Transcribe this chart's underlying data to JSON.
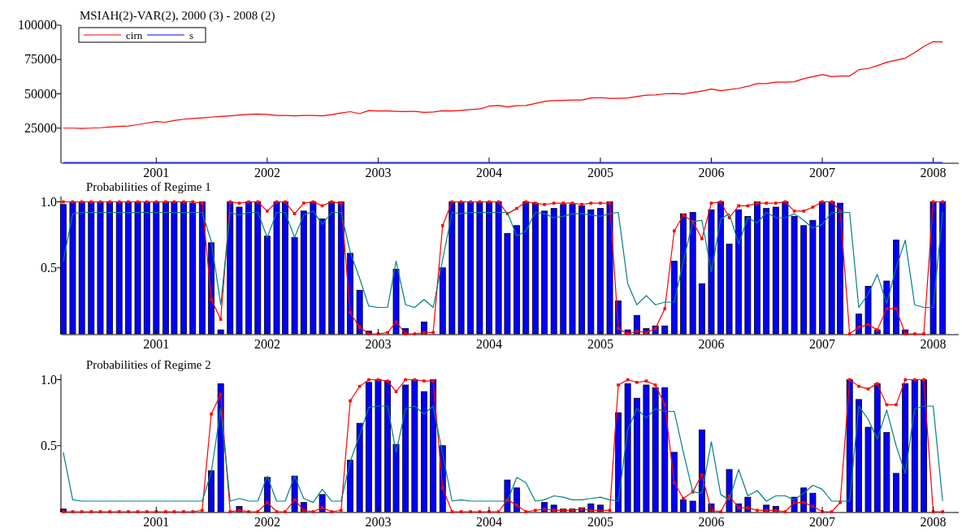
{
  "chart_data": [
    {
      "type": "line",
      "title": "MSIAH(2)-VAR(2), 2000 (3) - 2008 (2)",
      "x": [
        "2000-03",
        "2000-04",
        "2000-05",
        "2000-06",
        "2000-07",
        "2000-08",
        "2000-09",
        "2000-10",
        "2000-11",
        "2000-12",
        "2001-01",
        "2001-02",
        "2001-03",
        "2001-04",
        "2001-05",
        "2001-06",
        "2001-07",
        "2001-08",
        "2001-09",
        "2001-10",
        "2001-11",
        "2001-12",
        "2002-01",
        "2002-02",
        "2002-03",
        "2002-04",
        "2002-05",
        "2002-06",
        "2002-07",
        "2002-08",
        "2002-09",
        "2002-10",
        "2002-11",
        "2002-12",
        "2003-01",
        "2003-02",
        "2003-03",
        "2003-04",
        "2003-05",
        "2003-06",
        "2003-07",
        "2003-08",
        "2003-09",
        "2003-10",
        "2003-11",
        "2003-12",
        "2004-01",
        "2004-02",
        "2004-03",
        "2004-04",
        "2004-05",
        "2004-06",
        "2004-07",
        "2004-08",
        "2004-09",
        "2004-10",
        "2004-11",
        "2004-12",
        "2005-01",
        "2005-02",
        "2005-03",
        "2005-04",
        "2005-05",
        "2005-06",
        "2005-07",
        "2005-08",
        "2005-09",
        "2005-10",
        "2005-11",
        "2005-12",
        "2006-01",
        "2006-02",
        "2006-03",
        "2006-04",
        "2006-05",
        "2006-06",
        "2006-07",
        "2006-08",
        "2006-09",
        "2006-10",
        "2006-11",
        "2006-12",
        "2007-01",
        "2007-02",
        "2007-03",
        "2007-04",
        "2007-05",
        "2007-06",
        "2007-07",
        "2007-08",
        "2007-09",
        "2007-10",
        "2007-11",
        "2007-12",
        "2008-01",
        "2008-02"
      ],
      "series": [
        {
          "name": "cirn",
          "color": "#ff0000",
          "values": [
            25000,
            25000,
            24800,
            25000,
            25300,
            25800,
            26300,
            26500,
            27500,
            28700,
            29800,
            29300,
            30500,
            31500,
            32000,
            32500,
            33000,
            33500,
            34000,
            34500,
            35000,
            35300,
            35000,
            34300,
            34300,
            34000,
            34200,
            34300,
            34000,
            34800,
            36000,
            37000,
            35500,
            37800,
            37500,
            37500,
            37200,
            37000,
            37200,
            36500,
            36800,
            37600,
            37500,
            38000,
            38500,
            39000,
            41000,
            41500,
            40500,
            41300,
            41500,
            43000,
            44500,
            45000,
            45200,
            45500,
            45500,
            47000,
            47200,
            46700,
            46700,
            47000,
            48000,
            49000,
            49200,
            50000,
            50200,
            49800,
            51000,
            52000,
            53500,
            52300,
            53000,
            54000,
            55500,
            57500,
            57500,
            58500,
            58500,
            58800,
            61000,
            62500,
            64000,
            62500,
            63000,
            63000,
            67500,
            68500,
            70500,
            73000,
            74500,
            76000,
            80000,
            84500,
            88000,
            87800
          ]
        },
        {
          "name": "s",
          "color": "#0000ff",
          "values": [
            0,
            0,
            0,
            0,
            0,
            0,
            0,
            0,
            0,
            0,
            0,
            0,
            0,
            0,
            0,
            0,
            0,
            0,
            0,
            0,
            0,
            0,
            0,
            0,
            0,
            0,
            0,
            0,
            0,
            0,
            0,
            0,
            0,
            0,
            0,
            0,
            0,
            0,
            0,
            0,
            0,
            0,
            0,
            0,
            0,
            0,
            0,
            0,
            0,
            0,
            0,
            0,
            0,
            0,
            0,
            0,
            0,
            0,
            0,
            0,
            0,
            0,
            0,
            0,
            0,
            0,
            0,
            0,
            0,
            0,
            0,
            0,
            0,
            0,
            0,
            0,
            0,
            0,
            0,
            0,
            0,
            0,
            0,
            0,
            0,
            0,
            0,
            0,
            0,
            0,
            0,
            0,
            0,
            0,
            0,
            0
          ]
        }
      ],
      "xlim": [
        "2000-02-25",
        "2008-03-25"
      ],
      "xticks": [
        "2001",
        "2002",
        "2003",
        "2004",
        "2005",
        "2006",
        "2007",
        "2008"
      ],
      "ylim": [
        0,
        100000
      ],
      "yticks": [
        25000,
        50000,
        75000,
        100000
      ],
      "legend": "top left",
      "grid": false
    },
    {
      "type": "bar",
      "title": "Probabilities of Regime 1",
      "x": [
        "2000-03",
        "2000-04",
        "2000-05",
        "2000-06",
        "2000-07",
        "2000-08",
        "2000-09",
        "2000-10",
        "2000-11",
        "2000-12",
        "2001-01",
        "2001-02",
        "2001-03",
        "2001-04",
        "2001-05",
        "2001-06",
        "2001-07",
        "2001-08",
        "2001-09",
        "2001-10",
        "2001-11",
        "2001-12",
        "2002-01",
        "2002-02",
        "2002-03",
        "2002-04",
        "2002-05",
        "2002-06",
        "2002-07",
        "2002-08",
        "2002-09",
        "2002-10",
        "2002-11",
        "2002-12",
        "2003-01",
        "2003-02",
        "2003-03",
        "2003-04",
        "2003-05",
        "2003-06",
        "2003-07",
        "2003-08",
        "2003-09",
        "2003-10",
        "2003-11",
        "2003-12",
        "2004-01",
        "2004-02",
        "2004-03",
        "2004-04",
        "2004-05",
        "2004-06",
        "2004-07",
        "2004-08",
        "2004-09",
        "2004-10",
        "2004-11",
        "2004-12",
        "2005-01",
        "2005-02",
        "2005-03",
        "2005-04",
        "2005-05",
        "2005-06",
        "2005-07",
        "2005-08",
        "2005-09",
        "2005-10",
        "2005-11",
        "2005-12",
        "2006-01",
        "2006-02",
        "2006-03",
        "2006-04",
        "2006-05",
        "2006-06",
        "2006-07",
        "2006-08",
        "2006-09",
        "2006-10",
        "2006-11",
        "2006-12",
        "2007-01",
        "2007-02",
        "2007-03",
        "2007-04",
        "2007-05",
        "2007-06",
        "2007-07",
        "2007-08",
        "2007-09",
        "2007-10",
        "2007-11",
        "2007-12",
        "2008-01",
        "2008-02"
      ],
      "series": [
        {
          "color": "#0000ff",
          "values": [
            0.98,
            1,
            1,
            1,
            1,
            1,
            1,
            1,
            1,
            1,
            1,
            1,
            1,
            1,
            0.99,
            1,
            0.69,
            0.03,
            1,
            0.96,
            1,
            1,
            0.74,
            1,
            1,
            0.73,
            0.93,
            1,
            0.87,
            1,
            1,
            0.61,
            0.33,
            0.02,
            null,
            null,
            0.49,
            0.04,
            null,
            0.09,
            null,
            0.5,
            1,
            1,
            1,
            1,
            1,
            1,
            0.76,
            0.82,
            1,
            0.99,
            0.93,
            0.95,
            0.98,
            0.98,
            0.97,
            0.94,
            0.95,
            1,
            0.25,
            0.03,
            0.14,
            0.04,
            0.06,
            0.06,
            0.55,
            0.91,
            0.92,
            0.38,
            0.94,
            1,
            0.68,
            0.94,
            0.89,
            1,
            0.95,
            0.96,
            1,
            0.89,
            0.82,
            0.86,
            1,
            1,
            0.99,
            null,
            0.15,
            0.36,
            0.03,
            0.4,
            0.71,
            0.03,
            null,
            null,
            1,
            1
          ]
        },
        {
          "type": "line",
          "color": "#ff0000",
          "marker": "square",
          "values": [
            1,
            1,
            1,
            1,
            1,
            1,
            1,
            1,
            1,
            1,
            1,
            1,
            1,
            1,
            1,
            0.99,
            0.26,
            0.11,
            1,
            0.99,
            1,
            1,
            0.93,
            1,
            1,
            0.91,
            0.99,
            1,
            0.97,
            1,
            0.99,
            0.16,
            0.05,
            0,
            0,
            0.01,
            0.09,
            0,
            0,
            0.01,
            0.01,
            0.82,
            1,
            1,
            1,
            1,
            1,
            1,
            0.91,
            0.95,
            1,
            0.99,
            0.98,
            0.99,
            0.99,
            0.99,
            0.98,
            0.99,
            0.99,
            0.99,
            0.04,
            0,
            0.02,
            0.01,
            0.04,
            0.19,
            0.78,
            0.9,
            0.85,
            0.72,
            0.99,
            1,
            0.88,
            0.97,
            0.97,
            0.99,
            0.99,
            0.99,
            1,
            0.93,
            0.93,
            0.96,
            1,
            1,
            0.93,
            0,
            0.05,
            0.07,
            0.03,
            0.19,
            0.19,
            0,
            0,
            0,
            1,
            1
          ]
        },
        {
          "type": "line",
          "color": "#008080",
          "values": [
            0.55,
            0.91,
            0.92,
            0.92,
            0.92,
            0.92,
            0.92,
            0.92,
            0.92,
            0.92,
            0.92,
            0.92,
            0.92,
            0.92,
            0.92,
            0.92,
            0.7,
            0.22,
            0.92,
            0.9,
            0.92,
            0.92,
            0.73,
            0.92,
            0.92,
            0.73,
            0.9,
            0.93,
            0.83,
            0.92,
            0.92,
            0.62,
            0.42,
            0.21,
            0.2,
            0.2,
            0.55,
            0.22,
            0.2,
            0.26,
            0.2,
            0.56,
            0.92,
            0.91,
            0.92,
            0.92,
            0.92,
            0.92,
            0.92,
            0.74,
            0.78,
            0.92,
            0.91,
            0.88,
            0.89,
            0.91,
            0.91,
            0.9,
            0.89,
            0.91,
            0.92,
            0.38,
            0.22,
            0.29,
            0.22,
            0.24,
            0.24,
            0.55,
            0.85,
            0.86,
            0.47,
            0.87,
            0.91,
            0.68,
            0.88,
            0.84,
            0.92,
            0.88,
            0.88,
            0.91,
            0.86,
            0.8,
            0.83,
            0.92,
            0.92,
            0.92,
            0.2,
            0.3,
            0.45,
            0.23,
            0.5,
            0.71,
            0.22,
            0.2,
            0.2,
            0.92
          ]
        }
      ],
      "xlim": [
        "2000-02-25",
        "2008-03-25"
      ],
      "xticks": [
        "2001",
        "2002",
        "2003",
        "2004",
        "2005",
        "2006",
        "2007",
        "2008"
      ],
      "ylim": [
        0,
        1.04
      ],
      "yticks": [
        0.5,
        {
          "value": 1,
          "label": "1.0"
        }
      ],
      "grid": false
    },
    {
      "type": "bar",
      "title": "Probabilities of Regime 2",
      "x": [
        "2000-03",
        "2000-04",
        "2000-05",
        "2000-06",
        "2000-07",
        "2000-08",
        "2000-09",
        "2000-10",
        "2000-11",
        "2000-12",
        "2001-01",
        "2001-02",
        "2001-03",
        "2001-04",
        "2001-05",
        "2001-06",
        "2001-07",
        "2001-08",
        "2001-09",
        "2001-10",
        "2001-11",
        "2001-12",
        "2002-01",
        "2002-02",
        "2002-03",
        "2002-04",
        "2002-05",
        "2002-06",
        "2002-07",
        "2002-08",
        "2002-09",
        "2002-10",
        "2002-11",
        "2002-12",
        "2003-01",
        "2003-02",
        "2003-03",
        "2003-04",
        "2003-05",
        "2003-06",
        "2003-07",
        "2003-08",
        "2003-09",
        "2003-10",
        "2003-11",
        "2003-12",
        "2004-01",
        "2004-02",
        "2004-03",
        "2004-04",
        "2004-05",
        "2004-06",
        "2004-07",
        "2004-08",
        "2004-09",
        "2004-10",
        "2004-11",
        "2004-12",
        "2005-01",
        "2005-02",
        "2005-03",
        "2005-04",
        "2005-05",
        "2005-06",
        "2005-07",
        "2005-08",
        "2005-09",
        "2005-10",
        "2005-11",
        "2005-12",
        "2006-01",
        "2006-02",
        "2006-03",
        "2006-04",
        "2006-05",
        "2006-06",
        "2006-07",
        "2006-08",
        "2006-09",
        "2006-10",
        "2006-11",
        "2006-12",
        "2007-01",
        "2007-02",
        "2007-03",
        "2007-04",
        "2007-05",
        "2007-06",
        "2007-07",
        "2007-08",
        "2007-09",
        "2007-10",
        "2007-11",
        "2007-12",
        "2008-01",
        "2008-02"
      ],
      "series": [
        {
          "color": "#0000ff",
          "values": [
            0.02,
            null,
            null,
            null,
            null,
            null,
            null,
            null,
            null,
            null,
            null,
            null,
            null,
            null,
            null,
            null,
            0.31,
            0.97,
            null,
            0.04,
            null,
            null,
            0.26,
            null,
            null,
            0.27,
            0.07,
            null,
            0.13,
            null,
            null,
            0.39,
            0.67,
            0.98,
            1,
            0.99,
            0.51,
            0.96,
            1,
            0.91,
            1,
            0.5,
            null,
            null,
            null,
            null,
            null,
            null,
            0.24,
            0.18,
            null,
            null,
            0.07,
            0.05,
            0.02,
            0.02,
            0.03,
            0.06,
            0.05,
            null,
            0.75,
            0.97,
            0.86,
            0.96,
            0.94,
            0.94,
            0.45,
            0.09,
            0.08,
            0.62,
            0.06,
            null,
            0.32,
            0.06,
            0.11,
            null,
            0.05,
            0.04,
            null,
            0.11,
            0.18,
            0.14,
            null,
            null,
            null,
            1,
            0.85,
            0.64,
            0.97,
            0.6,
            0.29,
            0.97,
            1,
            1,
            null,
            null
          ]
        },
        {
          "type": "line",
          "color": "#ff0000",
          "marker": "square",
          "values": [
            0,
            0,
            0,
            0,
            0,
            0,
            0,
            0,
            0,
            0,
            0,
            0,
            0,
            0,
            0,
            0.01,
            0.74,
            0.89,
            0,
            0.01,
            0,
            0,
            0.07,
            0,
            0,
            0.09,
            0.01,
            0,
            0.03,
            0,
            0.01,
            0.84,
            0.95,
            1,
            1,
            0.99,
            0.91,
            1,
            1,
            0.99,
            0.99,
            0.18,
            0,
            0,
            0,
            0,
            0,
            0,
            0.09,
            0.05,
            0,
            0.01,
            0.02,
            0.01,
            0.01,
            0.01,
            0.02,
            0.01,
            0.01,
            0.01,
            0.96,
            1,
            0.98,
            0.99,
            0.96,
            0.81,
            0.22,
            0.1,
            0.15,
            0.28,
            0.01,
            0,
            0.12,
            0.03,
            0.03,
            0.01,
            0.01,
            0.01,
            0,
            0.07,
            0.07,
            0.04,
            0,
            0,
            0.07,
            1,
            0.95,
            0.93,
            0.97,
            0.81,
            0.81,
            1,
            1,
            1,
            0,
            0
          ]
        },
        {
          "type": "line",
          "color": "#008080",
          "values": [
            0.45,
            0.09,
            0.08,
            0.08,
            0.08,
            0.08,
            0.08,
            0.08,
            0.08,
            0.08,
            0.08,
            0.08,
            0.08,
            0.08,
            0.08,
            0.08,
            0.3,
            0.78,
            0.08,
            0.1,
            0.08,
            0.08,
            0.27,
            0.08,
            0.08,
            0.27,
            0.1,
            0.07,
            0.17,
            0.08,
            0.08,
            0.38,
            0.58,
            0.79,
            0.8,
            0.8,
            0.45,
            0.78,
            0.8,
            0.74,
            0.8,
            0.44,
            0.08,
            0.09,
            0.08,
            0.08,
            0.08,
            0.08,
            0.08,
            0.26,
            0.22,
            0.08,
            0.09,
            0.12,
            0.11,
            0.09,
            0.09,
            0.1,
            0.11,
            0.09,
            0.08,
            0.62,
            0.78,
            0.71,
            0.78,
            0.76,
            0.76,
            0.45,
            0.15,
            0.14,
            0.53,
            0.13,
            0.09,
            0.32,
            0.12,
            0.16,
            0.08,
            0.12,
            0.12,
            0.09,
            0.14,
            0.2,
            0.17,
            0.08,
            0.08,
            0.08,
            0.8,
            0.7,
            0.55,
            0.77,
            0.5,
            0.29,
            0.78,
            0.8,
            0.8,
            0.08
          ]
        }
      ],
      "xlim": [
        "2000-02-25",
        "2008-03-25"
      ],
      "xticks": [
        "2001",
        "2002",
        "2003",
        "2004",
        "2005",
        "2006",
        "2007",
        "2008"
      ],
      "ylim": [
        0,
        1.04
      ],
      "yticks": [
        0.5,
        {
          "value": 1,
          "label": "1.0"
        }
      ],
      "grid": false
    }
  ]
}
